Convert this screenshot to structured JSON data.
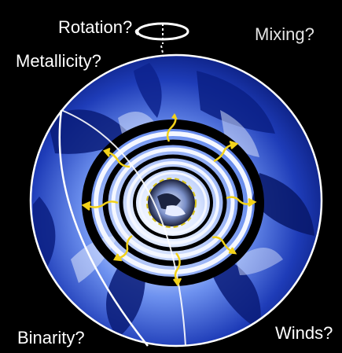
{
  "labels": {
    "rotation": "Rotation?",
    "mixing": "Mixing?",
    "metallicity": "Metallicity?",
    "binarity": "Binarity?",
    "winds": "Winds?"
  },
  "colors": {
    "background": "#000000",
    "star_deep": "#06166e",
    "star_mid": "#2a4fd0",
    "star_light": "#dfe9ff",
    "outline": "#ffffff",
    "arrow": "#f2d21a",
    "core_dash": "#d8c21a"
  },
  "icons": [
    "rotation-loop-icon",
    "outward-wave-arrow-icon"
  ]
}
